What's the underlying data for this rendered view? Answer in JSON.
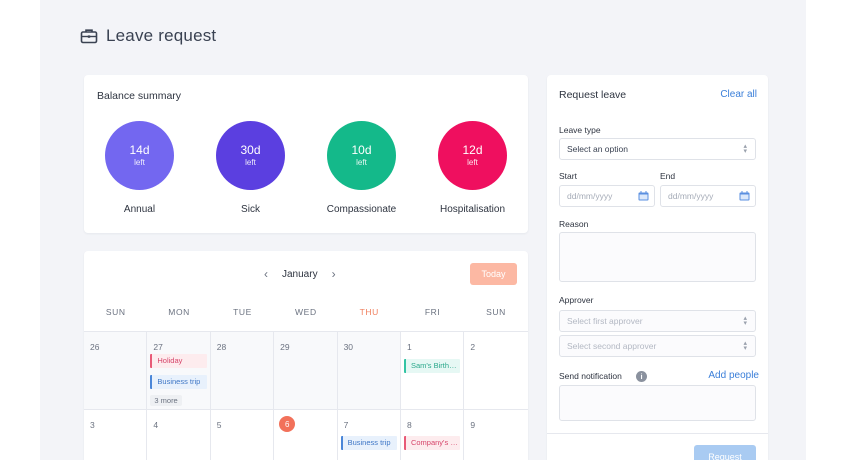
{
  "header": {
    "title": "Leave request",
    "icon": "briefcase-icon"
  },
  "balance": {
    "title": "Balance summary",
    "items": [
      {
        "days": "14d",
        "unit": "left",
        "label": "Annual",
        "color": "#7367f0"
      },
      {
        "days": "30d",
        "unit": "left",
        "label": "Sick",
        "color": "#5b3fe0"
      },
      {
        "days": "10d",
        "unit": "left",
        "label": "Compassionate",
        "color": "#14b98a"
      },
      {
        "days": "12d",
        "unit": "left",
        "label": "Hospitalisation",
        "color": "#ef0f5f"
      }
    ]
  },
  "calendar": {
    "month": "January",
    "today_label": "Today",
    "weekdays": [
      "SUN",
      "MON",
      "TUE",
      "WED",
      "THU",
      "FRI",
      "SUN"
    ],
    "week1": {
      "days": [
        "26",
        "27",
        "28",
        "29",
        "30",
        "1",
        "2"
      ],
      "events": {
        "holiday": "Holiday",
        "business": "Business trip",
        "more": "3 more",
        "birthday": "Sam's Birthday"
      }
    },
    "week2": {
      "days": [
        "3",
        "4",
        "5",
        "6",
        "7",
        "8",
        "9"
      ],
      "events": {
        "business": "Business trip",
        "company": "Company's event"
      }
    }
  },
  "request": {
    "title": "Request leave",
    "clear_all": "Clear all",
    "leave_type": {
      "label": "Leave type",
      "value": "Select an option"
    },
    "start": {
      "label": "Start",
      "placeholder": "dd/mm/yyyy"
    },
    "end": {
      "label": "End",
      "placeholder": "dd/mm/yyyy"
    },
    "reason": {
      "label": "Reason"
    },
    "approver": {
      "label": "Approver",
      "first": "Select first approver",
      "second": "Select second approver"
    },
    "notification": {
      "label": "Send notification",
      "add_people": "Add people"
    },
    "submit": "Request"
  }
}
